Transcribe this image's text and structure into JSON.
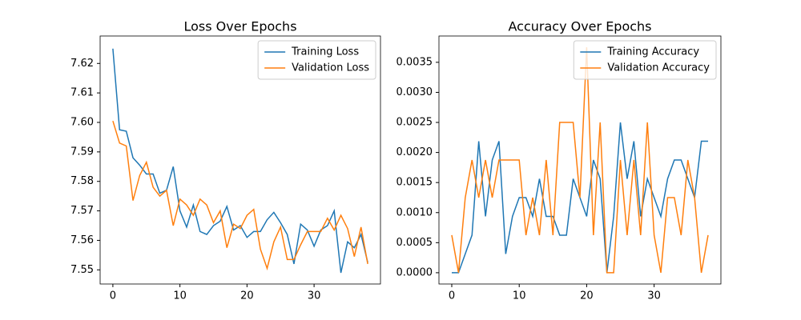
{
  "chart_data": [
    {
      "type": "line",
      "title": "Loss Over Epochs",
      "x": [
        0,
        1,
        2,
        3,
        4,
        5,
        6,
        7,
        8,
        9,
        10,
        11,
        12,
        13,
        14,
        15,
        16,
        17,
        18,
        19,
        20,
        21,
        22,
        23,
        24,
        25,
        26,
        27,
        28,
        29,
        30,
        31,
        32,
        33,
        34,
        35,
        36,
        37,
        38
      ],
      "series": [
        {
          "name": "Training Loss",
          "color": "#1f77b4",
          "values": [
            7.625,
            7.5975,
            7.597,
            7.588,
            7.5855,
            7.5825,
            7.5825,
            7.576,
            7.577,
            7.585,
            7.57,
            7.5645,
            7.572,
            7.563,
            7.562,
            7.565,
            7.5665,
            7.5715,
            7.5635,
            7.565,
            7.561,
            7.563,
            7.563,
            7.567,
            7.5695,
            7.566,
            7.562,
            7.552,
            7.5655,
            7.5635,
            7.558,
            7.5635,
            7.565,
            7.57,
            7.549,
            7.5595,
            7.5575,
            7.562,
            7.5525
          ]
        },
        {
          "name": "Validation Loss",
          "color": "#ff7f0e",
          "values": [
            7.6005,
            7.593,
            7.592,
            7.5735,
            7.582,
            7.5865,
            7.578,
            7.575,
            7.577,
            7.565,
            7.574,
            7.572,
            7.5685,
            7.574,
            7.572,
            7.566,
            7.57,
            7.5575,
            7.5655,
            7.564,
            7.5685,
            7.5705,
            7.557,
            7.5505,
            7.5595,
            7.5645,
            7.5535,
            7.5535,
            7.5585,
            7.563,
            7.563,
            7.563,
            7.5675,
            7.5635,
            7.5685,
            7.564,
            7.5545,
            7.5645,
            7.552
          ]
        }
      ],
      "xlim": [
        -1.9,
        39.9
      ],
      "xticks": [
        0,
        10,
        20,
        30
      ],
      "ylim": [
        7.5452,
        7.6293
      ],
      "yticks": [
        {
          "value": 7.55,
          "label": "7.55"
        },
        {
          "value": 7.56,
          "label": "7.56"
        },
        {
          "value": 7.57,
          "label": "7.57"
        },
        {
          "value": 7.58,
          "label": "7.58"
        },
        {
          "value": 7.59,
          "label": "7.59"
        },
        {
          "value": 7.6,
          "label": "7.60"
        },
        {
          "value": 7.61,
          "label": "7.61"
        },
        {
          "value": 7.62,
          "label": "7.62"
        }
      ],
      "legend": "upper right"
    },
    {
      "type": "line",
      "title": "Accuracy Over Epochs",
      "x": [
        0,
        1,
        2,
        3,
        4,
        5,
        6,
        7,
        8,
        9,
        10,
        11,
        12,
        13,
        14,
        15,
        16,
        17,
        18,
        19,
        20,
        21,
        22,
        23,
        24,
        25,
        26,
        27,
        28,
        29,
        30,
        31,
        32,
        33,
        34,
        35,
        36,
        37,
        38
      ],
      "series": [
        {
          "name": "Training Accuracy",
          "color": "#1f77b4",
          "values": [
            0,
            0,
            0.0003125,
            0.000625,
            0.0021875,
            0.0009375,
            0.001875,
            0.0021875,
            0.0003125,
            0.0009375,
            0.00125,
            0.00125,
            0.0009375,
            0.0015625,
            0.0009375,
            0.0009375,
            0.000625,
            0.000625,
            0.0015625,
            0.00125,
            0.0009375,
            0.001875,
            0.0015625,
            0,
            0.0009375,
            0.0025,
            0.0015625,
            0.0021875,
            0.0009375,
            0.0015625,
            0.00125,
            0.0009375,
            0.0015625,
            0.001875,
            0.001875,
            0.0015625,
            0.00125,
            0.0021875,
            0.0021875
          ]
        },
        {
          "name": "Validation Accuracy",
          "color": "#ff7f0e",
          "values": [
            0.000625,
            0,
            0.00125,
            0.001875,
            0.00125,
            0.001875,
            0.00125,
            0.001875,
            0.001875,
            0.001875,
            0.001875,
            0.000625,
            0.00125,
            0.000625,
            0.001875,
            0.000625,
            0.0025,
            0.0025,
            0.0025,
            0.00125,
            0.00375,
            0.000625,
            0.0025,
            0,
            0,
            0.001875,
            0.000625,
            0.001875,
            0.000625,
            0.0025,
            0.000625,
            0,
            0.00125,
            0.00125,
            0.000625,
            0.001875,
            0.00125,
            0,
            0.000625
          ]
        }
      ],
      "xlim": [
        -1.9,
        39.9
      ],
      "xticks": [
        0,
        10,
        20,
        30
      ],
      "ylim": [
        -0.0001875,
        0.0039375
      ],
      "yticks": [
        {
          "value": 0,
          "label": "0.0000"
        },
        {
          "value": 0.0005,
          "label": "0.0005"
        },
        {
          "value": 0.001,
          "label": "0.0010"
        },
        {
          "value": 0.0015,
          "label": "0.0015"
        },
        {
          "value": 0.002,
          "label": "0.0020"
        },
        {
          "value": 0.0025,
          "label": "0.0025"
        },
        {
          "value": 0.003,
          "label": "0.0030"
        },
        {
          "value": 0.0035,
          "label": "0.0035"
        }
      ],
      "legend": "upper right"
    }
  ]
}
